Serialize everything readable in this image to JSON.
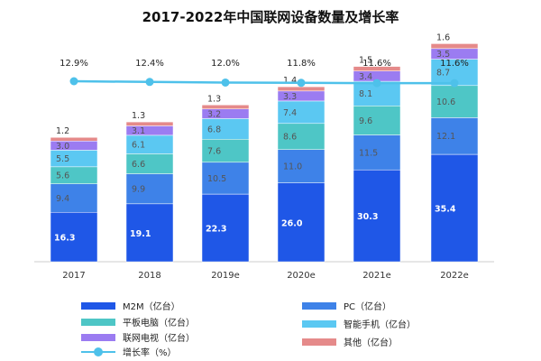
{
  "chart_data": {
    "type": "bar",
    "title": "2017-2022年中国联网设备数量及增长率",
    "categories": [
      "2017",
      "2018",
      "2019e",
      "2020e",
      "2021e",
      "2022e"
    ],
    "series": [
      {
        "name": "M2M（亿台）",
        "color": "#1f57e7",
        "values": [
          16.3,
          19.1,
          22.3,
          26.0,
          30.3,
          35.4
        ],
        "labels": [
          "16.3",
          "19.1",
          "22.3",
          "26.0",
          "30.3",
          "35.4"
        ]
      },
      {
        "name": "PC（亿台）",
        "color": "#3e82e8",
        "values": [
          9.4,
          9.9,
          10.5,
          11.0,
          11.5,
          12.1
        ],
        "labels": [
          "9.4",
          "9.9",
          "10.5",
          "11.0",
          "11.5",
          "12.1"
        ]
      },
      {
        "name": "平板电脑（亿台）",
        "color": "#4ec6c6",
        "values": [
          5.6,
          6.6,
          7.6,
          8.6,
          9.6,
          10.6
        ],
        "labels": [
          "5.6",
          "6.6",
          "7.6",
          "8.6",
          "9.6",
          "10.6"
        ]
      },
      {
        "name": "智能手机（亿台）",
        "color": "#5bc8f2",
        "values": [
          5.5,
          6.1,
          6.8,
          7.4,
          8.1,
          8.7
        ],
        "labels": [
          "5.5",
          "6.1",
          "6.8",
          "7.4",
          "8.1",
          "8.7"
        ]
      },
      {
        "name": "联网电视（亿台）",
        "color": "#9b7cf1",
        "values": [
          3.0,
          3.1,
          3.2,
          3.3,
          3.4,
          3.5
        ],
        "labels": [
          "3.0",
          "3.1",
          "3.2",
          "3.3",
          "3.4",
          "3.5"
        ]
      },
      {
        "name": "其他（亿台）",
        "color": "#e58a8a",
        "values": [
          1.2,
          1.3,
          1.3,
          1.4,
          1.5,
          1.6
        ],
        "labels": [
          "1.2",
          "1.3",
          "1.3",
          "1.4",
          "1.5",
          "1.6"
        ]
      }
    ],
    "growth_series": {
      "name": "增长率（%）",
      "color": "#4ec1ea",
      "values": [
        12.9,
        12.4,
        12.0,
        11.8,
        11.6,
        11.6
      ],
      "labels": [
        "12.9%",
        "12.4%",
        "12.0%",
        "11.8%",
        "11.6%",
        "11.6%"
      ]
    },
    "ylim": [
      0,
      80
    ],
    "grid": false,
    "legend_position": "bottom"
  }
}
